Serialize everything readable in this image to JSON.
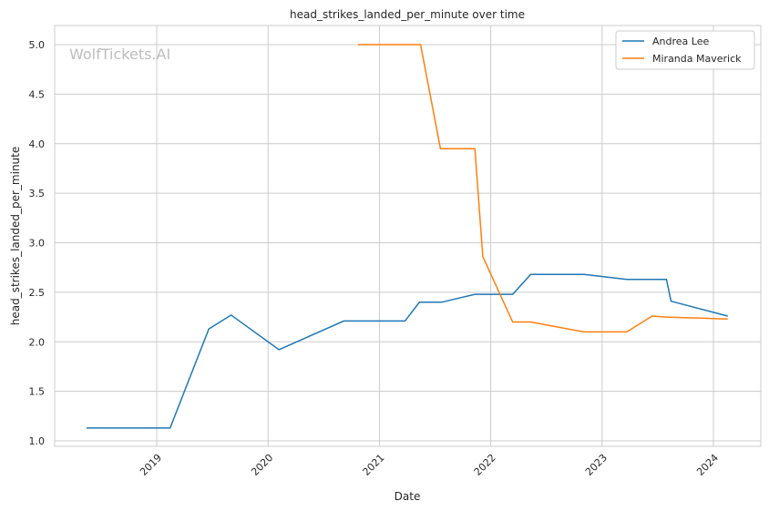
{
  "chart_data": {
    "type": "line",
    "title": "head_strikes_landed_per_minute over time",
    "xlabel": "Date",
    "ylabel": "head_strikes_landed_per_minute",
    "watermark": "WolfTickets.AI",
    "x_ticks": [
      "2019",
      "2020",
      "2021",
      "2022",
      "2023",
      "2024"
    ],
    "y_ticks": [
      "1.0",
      "1.5",
      "2.0",
      "2.5",
      "3.0",
      "3.5",
      "4.0",
      "4.5",
      "5.0"
    ],
    "ylim": [
      0.95,
      5.2
    ],
    "xlim": [
      "2018-02-01",
      "2024-06-01"
    ],
    "grid": true,
    "legend_position": "top-right",
    "series": [
      {
        "name": "Andrea Lee",
        "color": "#1f77b4",
        "points": [
          [
            "2018-05-16",
            1.13
          ],
          [
            "2019-02-14",
            1.13
          ],
          [
            "2019-06-21",
            2.13
          ],
          [
            "2019-09-02",
            2.27
          ],
          [
            "2020-02-06",
            1.92
          ],
          [
            "2020-09-06",
            2.21
          ],
          [
            "2021-03-26",
            2.21
          ],
          [
            "2021-05-12",
            2.4
          ],
          [
            "2021-07-24",
            2.4
          ],
          [
            "2021-11-10",
            2.48
          ],
          [
            "2022-03-14",
            2.48
          ],
          [
            "2022-05-12",
            2.68
          ],
          [
            "2022-11-03",
            2.68
          ],
          [
            "2023-03-23",
            2.63
          ],
          [
            "2023-07-31",
            2.63
          ],
          [
            "2023-08-15",
            2.41
          ],
          [
            "2024-02-17",
            2.26
          ]
        ]
      },
      {
        "name": "Miranda Maverick",
        "color": "#ff7f0e",
        "points": [
          [
            "2020-10-23",
            5.0
          ],
          [
            "2021-05-16",
            5.0
          ],
          [
            "2021-07-20",
            3.95
          ],
          [
            "2021-11-10",
            3.95
          ],
          [
            "2021-12-06",
            2.86
          ],
          [
            "2022-03-14",
            2.2
          ],
          [
            "2022-05-12",
            2.2
          ],
          [
            "2022-11-03",
            2.1
          ],
          [
            "2023-03-23",
            2.1
          ],
          [
            "2023-06-14",
            2.26
          ],
          [
            "2023-07-31",
            2.25
          ],
          [
            "2024-02-17",
            2.23
          ]
        ]
      }
    ]
  }
}
